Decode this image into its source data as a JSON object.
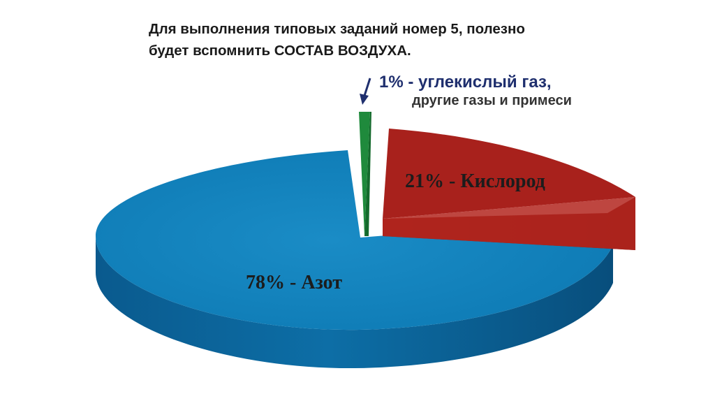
{
  "header": {
    "line1": "Для выполнения типовых заданий номер 5, полезно",
    "line2": "будет вспомнить СОСТАВ ВОЗДУХА."
  },
  "colors": {
    "nitrogen_top": "#0f7fb8",
    "nitrogen_side": "#0a5f94",
    "oxygen_top": "#a8211c",
    "oxygen_side": "#8c1a16",
    "other_top": "#1f8a3c",
    "other_side": "#146a2c",
    "label_blue": "#1f2f6e",
    "label_dark": "#1c1c1c"
  },
  "chart_data": {
    "type": "pie",
    "style": "3d-exploded",
    "slices": [
      {
        "key": "nitrogen",
        "value": 78,
        "label": "78% - Азот"
      },
      {
        "key": "oxygen",
        "value": 21,
        "label": "21% - Кислород"
      },
      {
        "key": "other",
        "value": 1,
        "label": "1% -  углекислый газ,",
        "label2": "другие газы и примеси"
      }
    ]
  }
}
